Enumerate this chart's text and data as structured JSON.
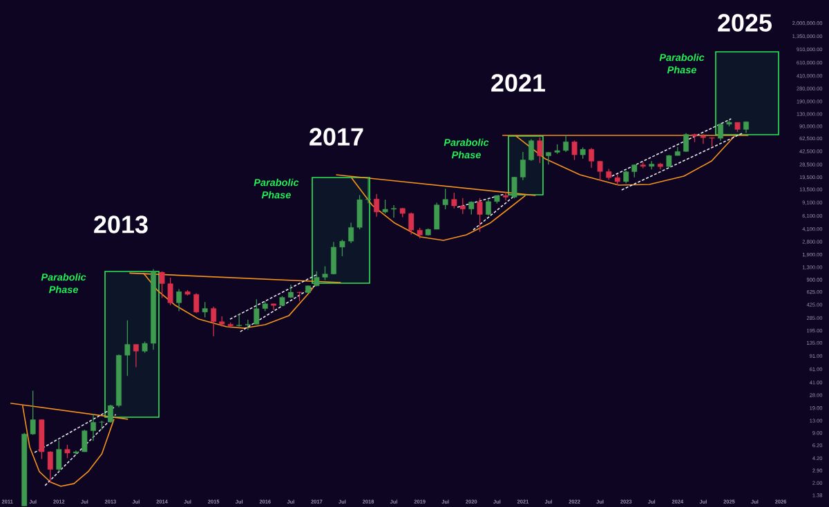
{
  "chart_data": {
    "type": "candlestick",
    "log": "y",
    "xlim": [
      "2010-11-10",
      "2026-12-09"
    ],
    "ylim": [
      0.97,
      4050000
    ],
    "xticks": [
      "2011",
      {
        "value": "2011-07",
        "label": "Jul"
      },
      "2012",
      {
        "value": "2012-07",
        "label": "Jul"
      },
      "2013",
      {
        "value": "2013-07",
        "label": "Jul"
      },
      "2014",
      {
        "value": "2014-07",
        "label": "Jul"
      },
      "2015",
      {
        "value": "2015-07",
        "label": "Jul"
      },
      "2016",
      {
        "value": "2016-07",
        "label": "Jul"
      },
      "2017",
      {
        "value": "2017-07",
        "label": "Jul"
      },
      "2018",
      {
        "value": "2018-07",
        "label": "Jul"
      },
      "2019",
      {
        "value": "2019-07",
        "label": "Jul"
      },
      "2020",
      {
        "value": "2020-07",
        "label": "Jul"
      },
      "2021",
      {
        "value": "2021-07",
        "label": "Jul"
      },
      "2022",
      {
        "value": "2022-07",
        "label": "Jul"
      },
      "2023",
      {
        "value": "2023-07",
        "label": "Jul"
      },
      "2024",
      {
        "value": "2024-07",
        "label": "Jul"
      },
      "2025",
      {
        "value": "2025-07",
        "label": "Jul"
      },
      "2026"
    ],
    "yticks": [
      {
        "value": 1.38,
        "label": "1.38"
      },
      {
        "value": 2,
        "label": "2.00"
      },
      {
        "value": 2.9,
        "label": "2.90"
      },
      {
        "value": 4.2,
        "label": "4.20"
      },
      {
        "value": 6.2,
        "label": "6.20"
      },
      {
        "value": 9,
        "label": "9.00"
      },
      {
        "value": 13,
        "label": "13.00"
      },
      {
        "value": 19,
        "label": "19.00"
      },
      {
        "value": 28,
        "label": "28.00"
      },
      {
        "value": 41,
        "label": "41.00"
      },
      {
        "value": 61,
        "label": "61.00"
      },
      {
        "value": 91,
        "label": "91.00"
      },
      {
        "value": 135,
        "label": "135.00"
      },
      {
        "value": 195,
        "label": "195.00"
      },
      {
        "value": 285,
        "label": "285.00"
      },
      {
        "value": 425,
        "label": "425.00"
      },
      {
        "value": 625,
        "label": "625.00"
      },
      {
        "value": 900,
        "label": "900.00"
      },
      {
        "value": 1300,
        "label": "1,300.00"
      },
      {
        "value": 1900,
        "label": "1,900.00"
      },
      {
        "value": 2800,
        "label": "2,800.00"
      },
      {
        "value": 4100,
        "label": "4,100.00"
      },
      {
        "value": 6100,
        "label": "6,100.00"
      },
      {
        "value": 9100,
        "label": "9,100.00"
      },
      {
        "value": 13500,
        "label": "13,500.00"
      },
      {
        "value": 19500,
        "label": "19,500.00"
      },
      {
        "value": 28500,
        "label": "28,500.00"
      },
      {
        "value": 42500,
        "label": "42,500.00"
      },
      {
        "value": 62500,
        "label": "62,500.00"
      },
      {
        "value": 90000,
        "label": "90,000.00"
      },
      {
        "value": 130000,
        "label": "130,000.00"
      },
      {
        "value": 190000,
        "label": "190,000.00"
      },
      {
        "value": 280000,
        "label": "280,000.00"
      },
      {
        "value": 410000,
        "label": "410,000.00"
      },
      {
        "value": 610000,
        "label": "610,000.00"
      },
      {
        "value": 910000,
        "label": "910,000.00"
      },
      {
        "value": 1350000,
        "label": "1,350,000.00"
      },
      {
        "value": 2000000,
        "label": "2,000,000.00"
      }
    ],
    "x": [
      "2011-05",
      "2011-07",
      "2011-09",
      "2011-11",
      "2012-01",
      "2012-03",
      "2012-05",
      "2012-07",
      "2012-09",
      "2012-11",
      "2013-01",
      "2013-03",
      "2013-05",
      "2013-07",
      "2013-09",
      "2013-11",
      "2014-01",
      "2014-03",
      "2014-05",
      "2014-07",
      "2014-09",
      "2014-11",
      "2015-01",
      "2015-03",
      "2015-05",
      "2015-07",
      "2015-09",
      "2015-11",
      "2016-01",
      "2016-03",
      "2016-05",
      "2016-07",
      "2016-09",
      "2016-11",
      "2017-01",
      "2017-03",
      "2017-05",
      "2017-07",
      "2017-09",
      "2017-11",
      "2018-01",
      "2018-03",
      "2018-05",
      "2018-07",
      "2018-09",
      "2018-11",
      "2019-01",
      "2019-03",
      "2019-05",
      "2019-07",
      "2019-09",
      "2019-11",
      "2020-01",
      "2020-03",
      "2020-05",
      "2020-07",
      "2020-09",
      "2020-11",
      "2021-01",
      "2021-03",
      "2021-05",
      "2021-07",
      "2021-09",
      "2021-11",
      "2022-01",
      "2022-03",
      "2022-05",
      "2022-07",
      "2022-09",
      "2022-11",
      "2023-01",
      "2023-03",
      "2023-05",
      "2023-07",
      "2023-09",
      "2023-11",
      "2024-01",
      "2024-03",
      "2024-05",
      "2024-07",
      "2024-09",
      "2024-11",
      "2025-01",
      "2025-03",
      "2025-05"
    ],
    "ohlc": [
      [
        1.0,
        9,
        1.0,
        8.7
      ],
      [
        8.7,
        32,
        8.5,
        13.4
      ],
      [
        13.4,
        13.5,
        4.1,
        5.1
      ],
      [
        5.1,
        5.2,
        2.0,
        3.0
      ],
      [
        3.0,
        7.2,
        2.8,
        5.5
      ],
      [
        5.5,
        6.3,
        4.2,
        4.9
      ],
      [
        4.9,
        5.3,
        4.7,
        5.1
      ],
      [
        5.1,
        9.9,
        5.1,
        9.6
      ],
      [
        9.6,
        16,
        7.1,
        12.4
      ],
      [
        12.4,
        13,
        9.9,
        12.5
      ],
      [
        12.5,
        21,
        12.3,
        20.5
      ],
      [
        20.5,
        95,
        19.5,
        93
      ],
      [
        93,
        266,
        50,
        129
      ],
      [
        129,
        130,
        65,
        105
      ],
      [
        105,
        140,
        100,
        133
      ],
      [
        133,
        1240,
        110,
        1130
      ],
      [
        1130,
        1160,
        520,
        800
      ],
      [
        800,
        960,
        420,
        450
      ],
      [
        450,
        680,
        350,
        630
      ],
      [
        630,
        660,
        560,
        580
      ],
      [
        580,
        600,
        330,
        340
      ],
      [
        340,
        460,
        290,
        380
      ],
      [
        380,
        400,
        165,
        255
      ],
      [
        255,
        300,
        220,
        236
      ],
      [
        236,
        250,
        210,
        225
      ],
      [
        225,
        320,
        220,
        230
      ],
      [
        230,
        270,
        200,
        236
      ],
      [
        236,
        500,
        235,
        378
      ],
      [
        378,
        470,
        350,
        437
      ],
      [
        437,
        440,
        365,
        415
      ],
      [
        415,
        550,
        415,
        530
      ],
      [
        530,
        780,
        520,
        620
      ],
      [
        620,
        625,
        470,
        610
      ],
      [
        610,
        760,
        600,
        750
      ],
      [
        750,
        1160,
        740,
        970
      ],
      [
        970,
        1350,
        890,
        1070
      ],
      [
        1070,
        2800,
        1060,
        2400
      ],
      [
        2400,
        3000,
        1830,
        2870
      ],
      [
        2870,
        5000,
        2700,
        4340
      ],
      [
        4340,
        11500,
        4100,
        10000
      ],
      [
        10000,
        19800,
        9000,
        10200
      ],
      [
        10200,
        11800,
        6000,
        6900
      ],
      [
        6900,
        10000,
        6600,
        7500
      ],
      [
        7500,
        8500,
        5800,
        7700
      ],
      [
        7700,
        7800,
        5900,
        6600
      ],
      [
        6600,
        6800,
        3500,
        4000
      ],
      [
        4000,
        4300,
        3130,
        3450
      ],
      [
        3450,
        4200,
        3400,
        4100
      ],
      [
        4100,
        9100,
        4100,
        8550
      ],
      [
        8550,
        13900,
        7500,
        10100
      ],
      [
        10100,
        12300,
        7700,
        8300
      ],
      [
        8300,
        10500,
        6500,
        7550
      ],
      [
        7550,
        9500,
        6400,
        9350
      ],
      [
        9350,
        10500,
        3800,
        6400
      ],
      [
        6400,
        10000,
        6200,
        9450
      ],
      [
        9450,
        11400,
        8900,
        11350
      ],
      [
        11350,
        12500,
        9800,
        10780
      ],
      [
        10780,
        19900,
        10400,
        19700
      ],
      [
        19700,
        41900,
        18000,
        33100
      ],
      [
        33100,
        61700,
        32000,
        58900
      ],
      [
        58900,
        64900,
        30000,
        37300
      ],
      [
        37300,
        42000,
        28800,
        41500
      ],
      [
        41500,
        52900,
        39600,
        43800
      ],
      [
        43800,
        69000,
        42000,
        57000
      ],
      [
        57000,
        59100,
        33000,
        38500
      ],
      [
        38500,
        48200,
        34300,
        45500
      ],
      [
        45500,
        47400,
        26000,
        31800
      ],
      [
        31800,
        31900,
        17600,
        23300
      ],
      [
        23300,
        25200,
        18200,
        19400
      ],
      [
        19400,
        21500,
        15500,
        17200
      ],
      [
        17200,
        23950,
        16300,
        23150
      ],
      [
        23150,
        28900,
        19600,
        28500
      ],
      [
        28500,
        31000,
        25800,
        27200
      ],
      [
        27200,
        31800,
        24800,
        29200
      ],
      [
        29200,
        30200,
        24900,
        27000
      ],
      [
        27000,
        38400,
        26600,
        37700
      ],
      [
        37700,
        48900,
        37600,
        42600
      ],
      [
        42600,
        73800,
        41900,
        71300
      ],
      [
        71300,
        72800,
        56500,
        67500
      ],
      [
        67500,
        72000,
        53500,
        64600
      ],
      [
        64600,
        65100,
        49000,
        63300
      ],
      [
        63300,
        99800,
        58900,
        96400
      ],
      [
        96400,
        108300,
        90500,
        102400
      ],
      [
        102400,
        102500,
        76600,
        82500
      ],
      [
        82500,
        105000,
        74400,
        104000
      ]
    ],
    "series": [
      {
        "type": "line",
        "color": "#f5931e",
        "line_style": "solid",
        "x": [
          "2011-01-23",
          "2013-05-05"
        ],
        "values": [
          22,
          13.6
        ]
      },
      {
        "type": "line",
        "color": "#f5931e",
        "line_style": "solid",
        "x": [
          "2011-04-19",
          "2011-06-08",
          "2011-08-16",
          "2011-11-03",
          "2012-01-15",
          "2012-04-17",
          "2012-07-26",
          "2012-11-01",
          "2013-01-26"
        ],
        "values": [
          20.5,
          5.9,
          2.8,
          2.05,
          1.81,
          1.96,
          2.8,
          4.8,
          13.6
        ]
      },
      {
        "type": "line",
        "color": "#f5931e",
        "line_style": "solid",
        "x": [
          "2013-05-15",
          "2017-06-21"
        ],
        "values": [
          1100,
          828
        ]
      },
      {
        "type": "line",
        "color": "#f5931e",
        "line_style": "solid",
        "x": [
          "2013-08-22",
          "2013-11-28",
          "2014-04-05",
          "2014-09-19",
          "2015-04-03",
          "2015-08-08",
          "2016-01-02",
          "2016-06-17",
          "2016-11-12",
          "2017-01-06"
        ],
        "values": [
          1100,
          659,
          417,
          275,
          219,
          210,
          233,
          305,
          619,
          845
        ]
      },
      {
        "type": "line",
        "color": "#f5931e",
        "line_style": "solid",
        "x": [
          "2017-05-18",
          "2021-04-01"
        ],
        "values": [
          21130,
          11340
        ]
      },
      {
        "type": "line",
        "color": "#f5931e",
        "line_style": "solid",
        "x": [
          "2017-09-03",
          "2018-01-29",
          "2018-07-08",
          "2019-01-07",
          "2019-06-17",
          "2019-11-26",
          "2020-05-12",
          "2020-09-16",
          "2021-01-18"
        ],
        "values": [
          19450,
          8476,
          4940,
          3260,
          2940,
          3470,
          4940,
          7490,
          11340
        ]
      },
      {
        "type": "line",
        "color": "#f5931e",
        "line_style": "solid",
        "x": [
          "2020-08-08",
          "2025-05-17"
        ],
        "values": [
          69100,
          69100
        ]
      },
      {
        "type": "line",
        "color": "#f5931e",
        "line_style": "solid",
        "x": [
          "2020-11-14",
          "2021-06-09",
          "2022-02-09",
          "2022-11-11",
          "2023-06-15",
          "2024-02-15",
          "2024-08-30",
          "2025-02-08"
        ],
        "values": [
          67600,
          34100,
          21130,
          15480,
          15810,
          20270,
          32040,
          67600
        ]
      },
      {
        "type": "line",
        "color": "#e8e8f0",
        "line_style": "dashed",
        "x": [
          "2011-07-13",
          "2013-01-26"
        ],
        "values": [
          5.0,
          19.3
        ]
      },
      {
        "type": "line",
        "color": "#e8e8f0",
        "line_style": "dashed",
        "x": [
          "2011-09-25",
          "2013-02-08"
        ],
        "values": [
          1.85,
          15.7
        ]
      },
      {
        "type": "line",
        "color": "#e8e8f0",
        "line_style": "dashed",
        "x": [
          "2015-04-27",
          "2017-01-06"
        ],
        "values": [
          275,
          1062
        ]
      },
      {
        "type": "line",
        "color": "#e8e8f0",
        "line_style": "dashed",
        "x": [
          "2015-07-09",
          "2017-01-01"
        ],
        "values": [
          189,
          778
        ]
      },
      {
        "type": "line",
        "color": "#e8e8f0",
        "line_style": "dashed",
        "x": [
          "2019-09-24",
          "2020-08-20"
        ],
        "values": [
          7960,
          11800
        ]
      },
      {
        "type": "line",
        "color": "#e8e8f0",
        "line_style": "dashed",
        "x": [
          "2020-01-14",
          "2020-11-04"
        ],
        "values": [
          4020,
          11340
        ]
      },
      {
        "type": "line",
        "color": "#e8e8f0",
        "line_style": "dashed",
        "x": [
          "2022-09-23",
          "2025-01-15"
        ],
        "values": [
          20270,
          113700
        ]
      },
      {
        "type": "line",
        "color": "#e8e8f0",
        "line_style": "dashed",
        "x": [
          "2022-12-01",
          "2025-04-13"
        ],
        "values": [
          13390,
          75000
        ]
      }
    ],
    "annotations": [
      "Parabolic Phase",
      "2013",
      "Parabolic Phase",
      "2017",
      "Parabolic Phase",
      "2021",
      "Parabolic Phase",
      "2025"
    ]
  }
}
